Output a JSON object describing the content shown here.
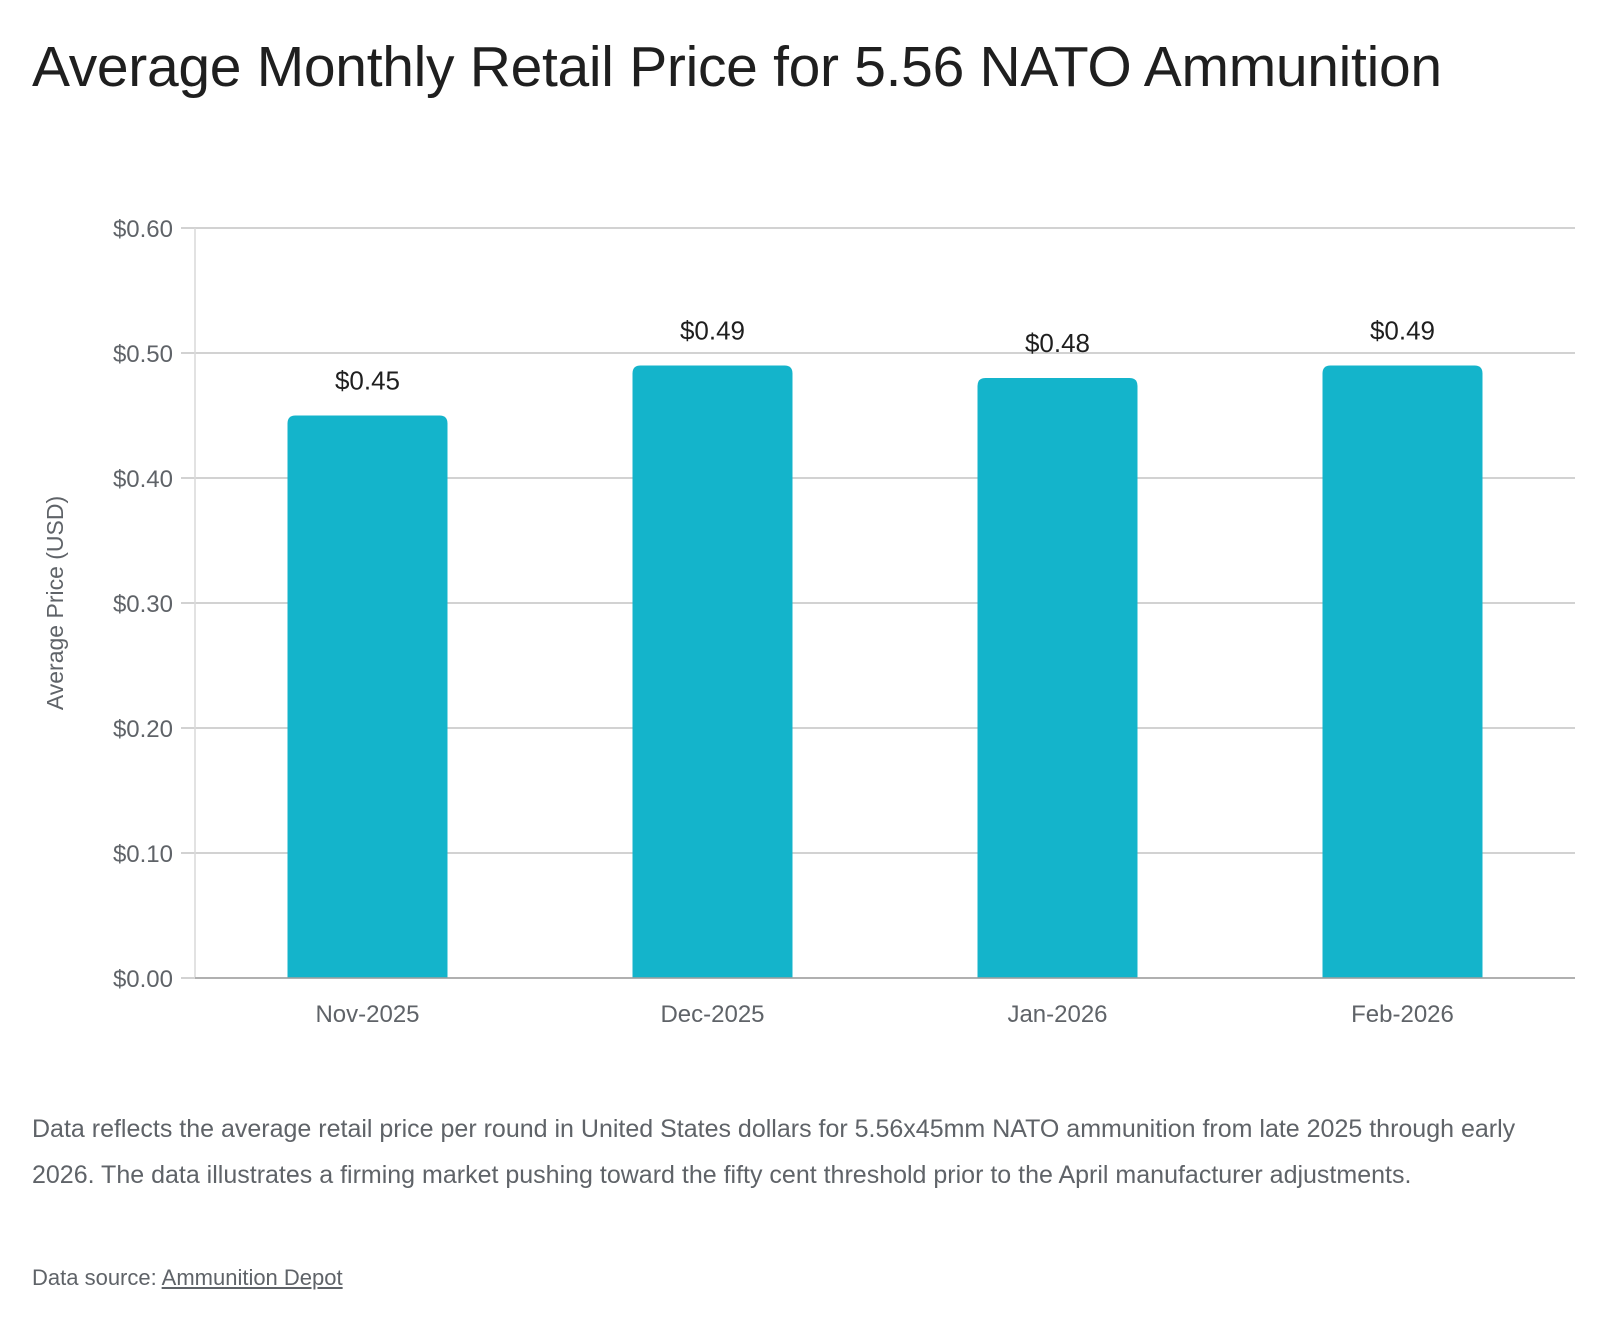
{
  "chart_data": {
    "type": "bar",
    "title": "Average Monthly Retail Price for 5.56 NATO Ammunition",
    "xlabel": "",
    "ylabel": "Average Price (USD)",
    "categories": [
      "Nov-2025",
      "Dec-2025",
      "Jan-2026",
      "Feb-2026"
    ],
    "values": [
      0.45,
      0.49,
      0.48,
      0.49
    ],
    "data_labels": [
      "$0.45",
      "$0.49",
      "$0.48",
      "$0.49"
    ],
    "ylim": [
      0,
      0.6
    ],
    "yticks": [
      0,
      0.1,
      0.2,
      0.3,
      0.4,
      0.5,
      0.6
    ],
    "ytick_labels": [
      "$0.00",
      "$0.10",
      "$0.20",
      "$0.30",
      "$0.40",
      "$0.50",
      "$0.60"
    ],
    "grid": true,
    "bar_color": "#14b4cb"
  },
  "caption": "Data reflects the average retail price per round in United States dollars for 5.56x45mm NATO ammunition from late 2025 through early 2026. The data illustrates a firming market pushing toward the fifty cent threshold prior to the April manufacturer adjustments.",
  "source": {
    "prefix": "Data source: ",
    "link_text": "Ammunition Depot"
  }
}
